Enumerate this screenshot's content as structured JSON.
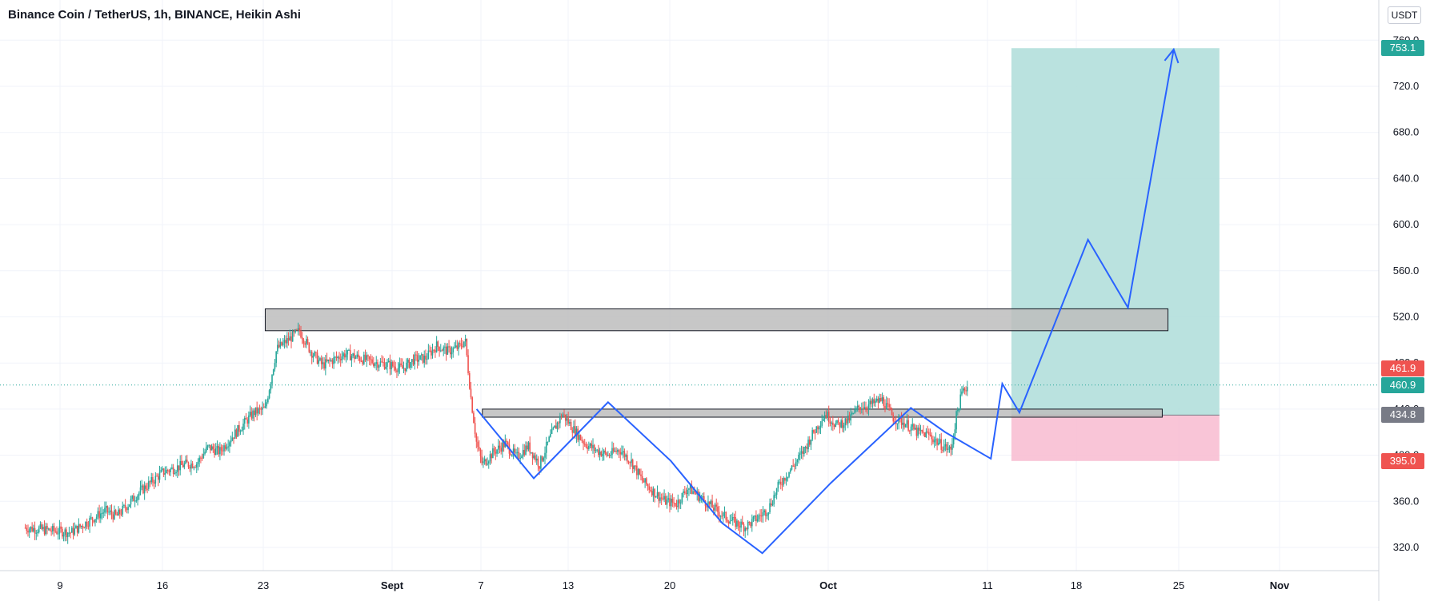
{
  "header": {
    "title": "Binance Coin / TetherUS, 1h, BINANCE, Heikin Ashi",
    "currency": "USDT"
  },
  "price_labels": [
    {
      "value": "753.1",
      "color": "#26a69a"
    },
    {
      "value": "461.9",
      "color": "#ef5350"
    },
    {
      "value": "460.9",
      "color": "#26a69a"
    },
    {
      "value": "434.8",
      "color": "#787b86"
    },
    {
      "value": "395.0",
      "color": "#ef5350"
    }
  ],
  "colors": {
    "up": "#26a69a",
    "down": "#ef5350",
    "pattern": "#2962ff",
    "target_zone": "#b2dfdb",
    "stop_zone": "#f8bbd0",
    "zone_box": "#bdbdbd",
    "current_line": "#26a69a"
  },
  "chart_data": {
    "type": "candlestick",
    "title": "Binance Coin / TetherUS, 1h, BINANCE, Heikin Ashi",
    "x_ticks": [
      "9",
      "16",
      "23",
      "Sept",
      "7",
      "13",
      "20",
      "Oct",
      "11",
      "18",
      "25",
      "Nov"
    ],
    "y_ticks": [
      320,
      360,
      400,
      440,
      480,
      520,
      560,
      600,
      640,
      680,
      720,
      760
    ],
    "y_tick_labels": [
      "320.0",
      "360.0",
      "400.0",
      "440.0",
      "480.0",
      "520.0",
      "560.0",
      "600.0",
      "640.0",
      "680.0",
      "720.0",
      "760.0"
    ],
    "ylim": [
      313,
      770
    ],
    "grid": true,
    "price_path": [
      [
        2,
        337
      ],
      [
        6,
        333
      ],
      [
        9,
        352
      ],
      [
        10,
        347
      ],
      [
        12,
        368
      ],
      [
        14,
        385
      ],
      [
        16,
        392
      ],
      [
        17,
        393
      ],
      [
        18,
        407
      ],
      [
        19,
        403
      ],
      [
        20,
        415
      ],
      [
        22,
        437
      ],
      [
        23,
        440
      ],
      [
        24,
        492
      ],
      [
        25,
        500
      ],
      [
        26,
        508
      ],
      [
        27,
        490
      ],
      [
        28,
        478
      ],
      [
        30,
        488
      ],
      [
        32,
        482
      ],
      [
        34,
        478
      ],
      [
        35,
        475
      ],
      [
        36,
        483
      ],
      [
        37,
        484
      ],
      [
        38,
        495
      ],
      [
        39,
        490
      ],
      [
        40,
        494
      ],
      [
        40.5,
        500
      ],
      [
        41,
        450
      ],
      [
        41.5,
        410
      ],
      [
        42,
        392
      ],
      [
        43,
        403
      ],
      [
        44,
        410
      ],
      [
        45,
        398
      ],
      [
        46,
        408
      ],
      [
        47,
        392
      ],
      [
        48,
        417
      ],
      [
        49,
        436
      ],
      [
        50,
        422
      ],
      [
        51,
        410
      ],
      [
        52,
        404
      ],
      [
        53,
        400
      ],
      [
        54,
        405
      ],
      [
        55,
        395
      ],
      [
        56,
        378
      ],
      [
        57,
        368
      ],
      [
        58,
        360
      ],
      [
        59,
        358
      ],
      [
        60,
        372
      ],
      [
        61,
        364
      ],
      [
        62,
        356
      ],
      [
        63,
        348
      ],
      [
        64,
        342
      ],
      [
        65,
        338
      ],
      [
        66,
        345
      ],
      [
        67,
        353
      ],
      [
        68,
        375
      ],
      [
        69,
        388
      ],
      [
        70,
        402
      ],
      [
        71,
        420
      ],
      [
        72,
        436
      ],
      [
        73,
        426
      ],
      [
        74,
        430
      ],
      [
        75,
        442
      ],
      [
        76,
        444
      ],
      [
        77,
        448
      ],
      [
        78,
        432
      ],
      [
        79,
        428
      ],
      [
        80,
        420
      ],
      [
        81,
        418
      ],
      [
        82,
        410
      ],
      [
        83,
        404
      ],
      [
        83.5,
        435
      ],
      [
        84,
        455
      ],
      [
        84.5,
        460.9
      ]
    ],
    "pattern_path": [
      [
        41.5,
        440
      ],
      [
        46.5,
        380
      ],
      [
        53,
        446
      ],
      [
        58.5,
        395
      ],
      [
        63,
        341
      ],
      [
        66.5,
        315
      ],
      [
        72.5,
        376
      ],
      [
        79.5,
        441
      ],
      [
        82.5,
        420
      ],
      [
        86.5,
        397
      ],
      [
        87.5,
        462
      ],
      [
        89,
        437
      ],
      [
        95,
        587
      ],
      [
        98.5,
        528
      ],
      [
        102.5,
        752
      ]
    ],
    "pattern_arrow_end": [
      102.5,
      752
    ],
    "zones": [
      {
        "x0": 23,
        "x1": 102,
        "y0": 508,
        "y1": 527
      },
      {
        "x0": 42,
        "x1": 101.5,
        "y0": 433,
        "y1": 440
      }
    ],
    "position": {
      "x0": 88.3,
      "x1": 106.5,
      "entry": 434.8,
      "target": 753.1,
      "stop": 395.0
    },
    "last_price": 460.9,
    "x_range": [
      0,
      125
    ]
  }
}
